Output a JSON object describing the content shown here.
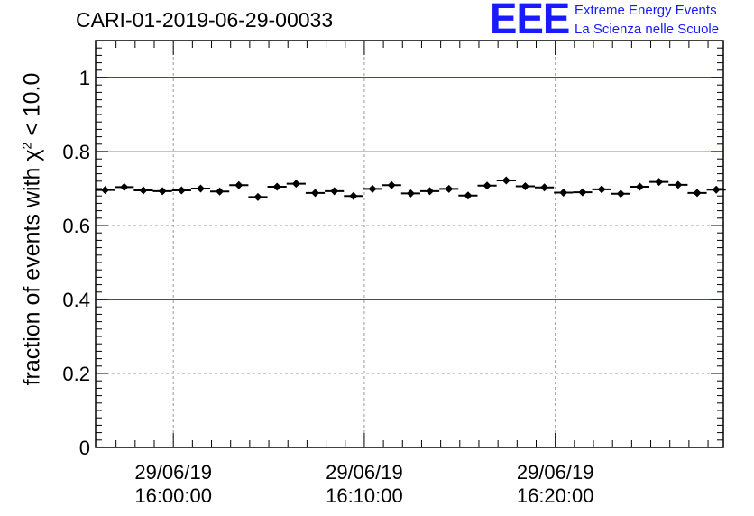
{
  "title": "CARI-01-2019-06-29-00033",
  "logo": {
    "mark": "EEE",
    "line1": "Extreme Energy Events",
    "line2": "La Scienza nelle Scuole",
    "color": "#1a1aff"
  },
  "chart_data": {
    "type": "scatter",
    "title": "CARI-01-2019-06-29-00033",
    "ylabel_prefix": "fraction of events with",
    "ylabel_symbol": "χ",
    "ylabel_exponent": "2",
    "ylabel_suffix": " < 10.0",
    "xlabel": "",
    "ylim": [
      0,
      1.1
    ],
    "xlim_minutes": [
      -4.07,
      28.8
    ],
    "y_ticks": [
      0,
      0.2,
      0.4,
      0.6,
      0.8,
      1
    ],
    "y_tick_labels": [
      "0",
      "0.2",
      "0.4",
      "0.6",
      "0.8",
      "1"
    ],
    "x_ticks": [
      {
        "minutes": 0,
        "date": "29/06/19",
        "time": "16:00:00"
      },
      {
        "minutes": 10,
        "date": "29/06/19",
        "time": "16:10:00"
      },
      {
        "minutes": 20,
        "date": "29/06/19",
        "time": "16:20:00"
      }
    ],
    "grid": true,
    "reference_lines": [
      {
        "y": 1.0,
        "color": "#ff0000"
      },
      {
        "y": 0.8,
        "color": "#ffcc00"
      },
      {
        "y": 0.4,
        "color": "#ff0000"
      }
    ],
    "bin_width_minutes": 1,
    "x_minutes": [
      -3.57,
      -2.57,
      -1.57,
      -0.57,
      0.43,
      1.43,
      2.43,
      3.43,
      4.43,
      5.43,
      6.43,
      7.43,
      8.43,
      9.43,
      10.43,
      11.43,
      12.43,
      13.43,
      14.43,
      15.43,
      16.43,
      17.43,
      18.43,
      19.43,
      20.43,
      21.43,
      22.43,
      23.43,
      24.43,
      25.43,
      26.43,
      27.43,
      28.43
    ],
    "y": [
      0.696,
      0.704,
      0.695,
      0.693,
      0.695,
      0.7,
      0.692,
      0.709,
      0.677,
      0.705,
      0.713,
      0.688,
      0.693,
      0.68,
      0.699,
      0.709,
      0.687,
      0.693,
      0.699,
      0.681,
      0.708,
      0.722,
      0.706,
      0.703,
      0.689,
      0.69,
      0.698,
      0.686,
      0.705,
      0.718,
      0.71,
      0.688,
      0.697
    ],
    "y_err": [
      0.006,
      0.006,
      0.006,
      0.006,
      0.006,
      0.006,
      0.006,
      0.006,
      0.006,
      0.006,
      0.006,
      0.006,
      0.006,
      0.006,
      0.006,
      0.006,
      0.006,
      0.006,
      0.006,
      0.006,
      0.006,
      0.006,
      0.006,
      0.006,
      0.006,
      0.006,
      0.006,
      0.006,
      0.006,
      0.006,
      0.006,
      0.006,
      0.006
    ],
    "marker_color": "#000000"
  }
}
